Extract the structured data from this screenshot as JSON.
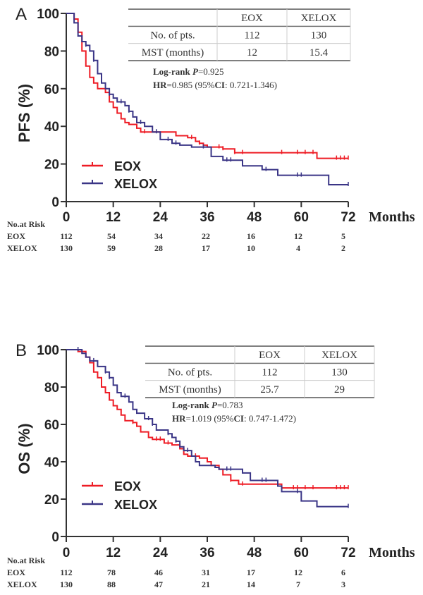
{
  "colors": {
    "EOX": "#ee1c25",
    "XELOX": "#3a3586",
    "axis": "#333333"
  },
  "chart_data": [
    {
      "type": "line",
      "panel": "A",
      "ylabel": "PFS (%)",
      "xlabel": "Months",
      "xlim": [
        0,
        72
      ],
      "ylim": [
        0,
        100
      ],
      "xticks": [
        "0",
        "12",
        "24",
        "36",
        "48",
        "60",
        "72"
      ],
      "yticks": [
        "0",
        "20",
        "40",
        "60",
        "80",
        "100"
      ],
      "legend": {
        "position": "bottom-left",
        "entries": [
          "EOX",
          "XELOX"
        ]
      },
      "table": {
        "headers": [
          "",
          "EOX",
          "XELOX"
        ],
        "rows": [
          [
            "No. of pts.",
            "112",
            "130"
          ],
          [
            "MST (months)",
            "12",
            "15.4"
          ]
        ]
      },
      "stats": {
        "line1_label": "Log-rank ",
        "line1_p": "P",
        "line1_value": "=0.925",
        "line2_label": "HR",
        "line2_value": "=0.985 (95%",
        "line2_ci": "CI",
        "line2_range": ": 0.721-1.346)"
      },
      "risk": {
        "title": "No.at Risk",
        "rows": [
          {
            "label": "EOX",
            "values": [
              "112",
              "54",
              "34",
              "22",
              "16",
              "12",
              "5"
            ]
          },
          {
            "label": "XELOX",
            "values": [
              "130",
              "59",
              "28",
              "17",
              "10",
              "4",
              "2"
            ]
          }
        ]
      },
      "series": [
        {
          "name": "EOX",
          "steps": [
            [
              0,
              100
            ],
            [
              2,
              97
            ],
            [
              3,
              90
            ],
            [
              4,
              80
            ],
            [
              5,
              72
            ],
            [
              6,
              66
            ],
            [
              7,
              63
            ],
            [
              8,
              60
            ],
            [
              10,
              58
            ],
            [
              11,
              53
            ],
            [
              12,
              50
            ],
            [
              13,
              47
            ],
            [
              14,
              44
            ],
            [
              15,
              42
            ],
            [
              16,
              41
            ],
            [
              18,
              39
            ],
            [
              19,
              37
            ],
            [
              28,
              35
            ],
            [
              31,
              34
            ],
            [
              33,
              32
            ],
            [
              34,
              31
            ],
            [
              35,
              30
            ],
            [
              36,
              29
            ],
            [
              40,
              28
            ],
            [
              43,
              26
            ],
            [
              64,
              23
            ],
            [
              72,
              23
            ]
          ],
          "censored": [
            20,
            32,
            34,
            39,
            40,
            43,
            45,
            55,
            59,
            61,
            63,
            69,
            70,
            71,
            72
          ]
        },
        {
          "name": "XELOX",
          "steps": [
            [
              0,
              100
            ],
            [
              2,
              95
            ],
            [
              3,
              88
            ],
            [
              4,
              85
            ],
            [
              5,
              83
            ],
            [
              6,
              80
            ],
            [
              7,
              75
            ],
            [
              8,
              68
            ],
            [
              9,
              63
            ],
            [
              10,
              60
            ],
            [
              11,
              57
            ],
            [
              12,
              55
            ],
            [
              13,
              53
            ],
            [
              15,
              51
            ],
            [
              16,
              48
            ],
            [
              17,
              45
            ],
            [
              18,
              42
            ],
            [
              20,
              40
            ],
            [
              22,
              37
            ],
            [
              24,
              33
            ],
            [
              27,
              31
            ],
            [
              29,
              30
            ],
            [
              32,
              29
            ],
            [
              37,
              24
            ],
            [
              40,
              22
            ],
            [
              45,
              19
            ],
            [
              50,
              17
            ],
            [
              54,
              14
            ],
            [
              67,
              9
            ],
            [
              72,
              9
            ]
          ],
          "censored": [
            5,
            7,
            11,
            14,
            16,
            19,
            23,
            26,
            28,
            35,
            41,
            42,
            51,
            59,
            60,
            72
          ]
        }
      ]
    },
    {
      "type": "line",
      "panel": "B",
      "ylabel": "OS (%)",
      "xlabel": "Months",
      "xlim": [
        0,
        72
      ],
      "ylim": [
        0,
        100
      ],
      "xticks": [
        "0",
        "12",
        "24",
        "36",
        "48",
        "60",
        "72"
      ],
      "yticks": [
        "0",
        "20",
        "40",
        "60",
        "80",
        "100"
      ],
      "legend": {
        "position": "bottom-left",
        "entries": [
          "EOX",
          "XELOX"
        ]
      },
      "table": {
        "headers": [
          "",
          "EOX",
          "XELOX"
        ],
        "rows": [
          [
            "No. of pts.",
            "112",
            "130"
          ],
          [
            "MST (months)",
            "25.7",
            "29"
          ]
        ]
      },
      "stats": {
        "line1_label": "Log-rank ",
        "line1_p": "P",
        "line1_value": "=0.783",
        "line2_label": "HR",
        "line2_value": "=1.019 (95%",
        "line2_ci": "CI",
        "line2_range": ": 0.747-1.472)"
      },
      "risk": {
        "title": "No.at Risk",
        "rows": [
          {
            "label": "EOX",
            "values": [
              "112",
              "78",
              "46",
              "31",
              "17",
              "12",
              "6"
            ]
          },
          {
            "label": "XELOX",
            "values": [
              "130",
              "88",
              "47",
              "21",
              "14",
              "7",
              "3"
            ]
          }
        ]
      },
      "series": [
        {
          "name": "EOX",
          "steps": [
            [
              0,
              100
            ],
            [
              3,
              99
            ],
            [
              5,
              96
            ],
            [
              6,
              93
            ],
            [
              7,
              88
            ],
            [
              8,
              85
            ],
            [
              9,
              80
            ],
            [
              10,
              77
            ],
            [
              11,
              73
            ],
            [
              12,
              70
            ],
            [
              13,
              68
            ],
            [
              14,
              65
            ],
            [
              15,
              62
            ],
            [
              17,
              61
            ],
            [
              18,
              59
            ],
            [
              19,
              56
            ],
            [
              21,
              53
            ],
            [
              22,
              52
            ],
            [
              25,
              50
            ],
            [
              27,
              49
            ],
            [
              29,
              47
            ],
            [
              30,
              44
            ],
            [
              31,
              43
            ],
            [
              34,
              42
            ],
            [
              36,
              40
            ],
            [
              37,
              38
            ],
            [
              39,
              36
            ],
            [
              40,
              33
            ],
            [
              42,
              30
            ],
            [
              44,
              28
            ],
            [
              55,
              26
            ],
            [
              72,
              26
            ]
          ],
          "censored": [
            17,
            23,
            24,
            26,
            33,
            42,
            45,
            55,
            58,
            59,
            61,
            63,
            69,
            70,
            71,
            72
          ]
        },
        {
          "name": "XELOX",
          "steps": [
            [
              0,
              100
            ],
            [
              4,
              98
            ],
            [
              5,
              96
            ],
            [
              6,
              94
            ],
            [
              8,
              91
            ],
            [
              10,
              88
            ],
            [
              11,
              85
            ],
            [
              12,
              81
            ],
            [
              13,
              77
            ],
            [
              14,
              75
            ],
            [
              16,
              72
            ],
            [
              17,
              68
            ],
            [
              18,
              66
            ],
            [
              20,
              63
            ],
            [
              22,
              60
            ],
            [
              23,
              57
            ],
            [
              26,
              55
            ],
            [
              27,
              53
            ],
            [
              28,
              51
            ],
            [
              29,
              48
            ],
            [
              30,
              46
            ],
            [
              32,
              43
            ],
            [
              33,
              40
            ],
            [
              34,
              38
            ],
            [
              38,
              37
            ],
            [
              39,
              36
            ],
            [
              45,
              34
            ],
            [
              47,
              30
            ],
            [
              54,
              27
            ],
            [
              55,
              24
            ],
            [
              60,
              19
            ],
            [
              64,
              16
            ],
            [
              72,
              16
            ]
          ],
          "censored": [
            3,
            7,
            10,
            11,
            15,
            21,
            22,
            26,
            28,
            31,
            41,
            42,
            50,
            51,
            59,
            72
          ]
        }
      ]
    }
  ],
  "panels": [
    {
      "letter": "A"
    },
    {
      "letter": "B"
    }
  ]
}
